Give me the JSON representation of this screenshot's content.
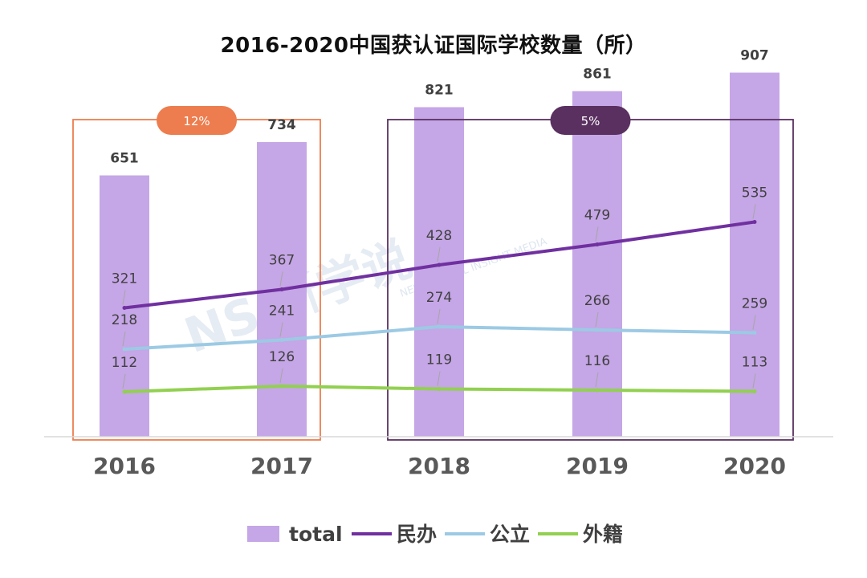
{
  "chart_data": {
    "type": "bar",
    "title": "2016-2020中国获认证国际学校数量（所）",
    "categories": [
      "2016",
      "2017",
      "2018",
      "2019",
      "2020"
    ],
    "bar_series": {
      "name": "total",
      "values": [
        651,
        734,
        821,
        861,
        907
      ],
      "color": "#c5a6e6"
    },
    "line_series": [
      {
        "name": "民办",
        "values": [
          321,
          367,
          428,
          479,
          535
        ],
        "color": "#7030a0"
      },
      {
        "name": "公立",
        "values": [
          218,
          241,
          274,
          266,
          259
        ],
        "color": "#9ccae4"
      },
      {
        "name": "外籍",
        "values": [
          112,
          126,
          119,
          116,
          113
        ],
        "color": "#92d050"
      }
    ],
    "groups": [
      {
        "label": "12%",
        "categories": [
          "2016",
          "2017"
        ],
        "color": "#ed7d4e"
      },
      {
        "label": "5%",
        "categories": [
          "2018",
          "2019",
          "2020"
        ],
        "color": "#5a3060"
      }
    ],
    "ylim": [
      0,
      1000
    ],
    "legend_position": "bottom",
    "grid": false
  },
  "watermark": {
    "main": "NS 新学说",
    "sub": "NEW SCHOOL INSIGHT MEDIA"
  }
}
